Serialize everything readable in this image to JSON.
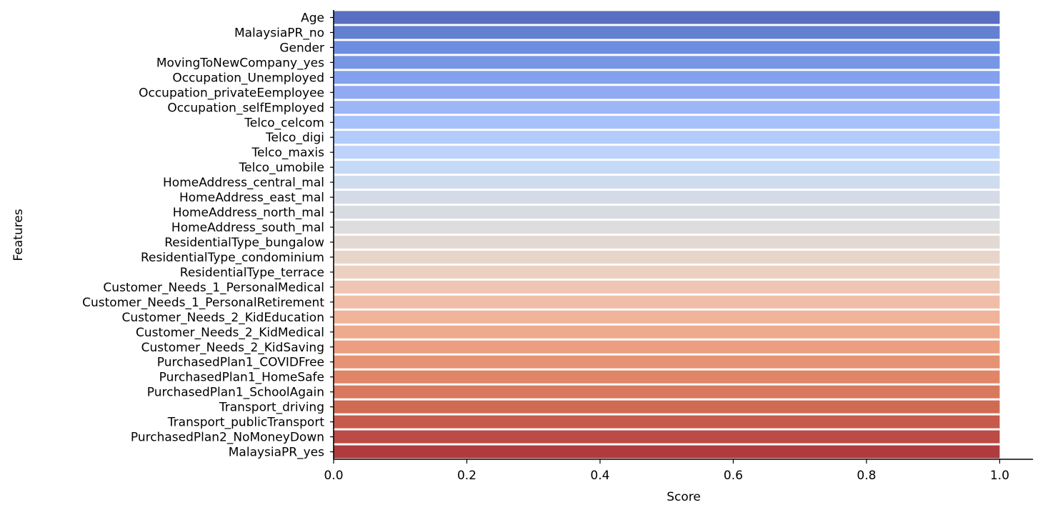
{
  "chart_data": {
    "type": "bar",
    "orientation": "horizontal",
    "title": "",
    "xlabel": "Score",
    "ylabel": "Features",
    "xlim": [
      0.0,
      1.05
    ],
    "xticks": [
      0.0,
      0.2,
      0.4,
      0.6,
      0.8,
      1.0
    ],
    "xtick_labels": [
      "0.0",
      "0.2",
      "0.4",
      "0.6",
      "0.8",
      "1.0"
    ],
    "grid": false,
    "legend": "none",
    "palette": "coolwarm",
    "categories": [
      "Age",
      "MalaysiaPR_no",
      "Gender",
      "MovingToNewCompany_yes",
      "Occupation_Unemployed",
      "Occupation_privateEemployee",
      "Occupation_selfEmployed",
      "Telco_celcom",
      "Telco_digi",
      "Telco_maxis",
      "Telco_umobile",
      "HomeAddress_central_mal",
      "HomeAddress_east_mal",
      "HomeAddress_north_mal",
      "HomeAddress_south_mal",
      "ResidentialType_bungalow",
      "ResidentialType_condominium",
      "ResidentialType_terrace",
      "Customer_Needs_1_PersonalMedical",
      "Customer_Needs_1_PersonalRetirement",
      "Customer_Needs_2_KidEducation",
      "Customer_Needs_2_KidMedical",
      "Customer_Needs_2_KidSaving",
      "PurchasedPlan1_COVIDFree",
      "PurchasedPlan1_HomeSafe",
      "PurchasedPlan1_SchoolAgain",
      "Transport_driving",
      "Transport_publicTransport",
      "PurchasedPlan2_NoMoneyDown",
      "MalaysiaPR_yes"
    ],
    "values": [
      1,
      1,
      1,
      1,
      1,
      1,
      1,
      1,
      1,
      1,
      1,
      1,
      1,
      1,
      1,
      1,
      1,
      1,
      1,
      1,
      1,
      1,
      1,
      1,
      1,
      1,
      1,
      1,
      1,
      1
    ],
    "colors": [
      "#5a6fc1",
      "#6380d1",
      "#6d8de0",
      "#7896e6",
      "#84a1ed",
      "#90abf3",
      "#9cb6f7",
      "#a7c1fa",
      "#b2cbfb",
      "#bdd3fb",
      "#c6d9f6",
      "#cedcee",
      "#d5dbe6",
      "#d9dbe2",
      "#dddddd",
      "#e3d9d3",
      "#e8d5ca",
      "#ecd0c0",
      "#efc6b3",
      "#f0bea8",
      "#f0b49a",
      "#eeaa8c",
      "#eb9f80",
      "#e69274",
      "#e08568",
      "#d8785d",
      "#cf6b53",
      "#c65a4b",
      "#bc4a45",
      "#b03b3f"
    ]
  }
}
